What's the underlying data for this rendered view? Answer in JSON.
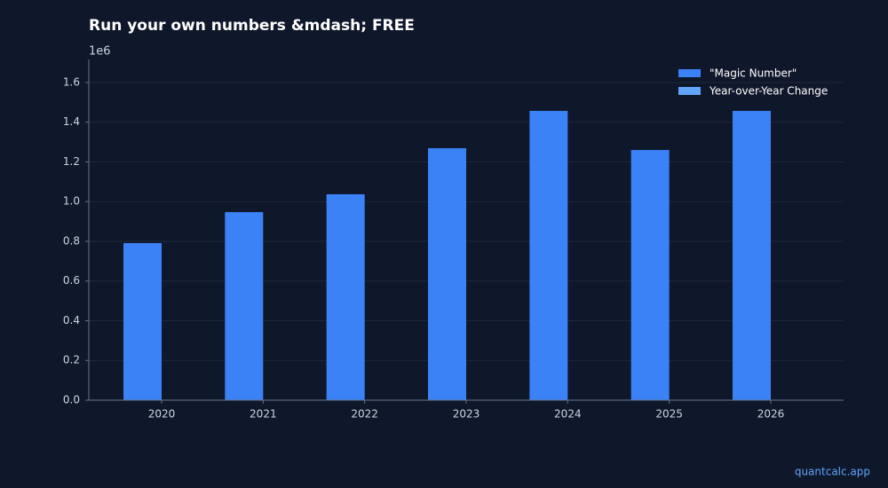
{
  "chart_data": {
    "type": "bar",
    "title": "Run your own numbers &mdash; FREE",
    "y_offset_label": "1e6",
    "categories": [
      "2020",
      "2021",
      "2022",
      "2023",
      "2024",
      "2025",
      "2026"
    ],
    "series": [
      {
        "name": "\"Magic Number\"",
        "color": "#3b82f6",
        "values": [
          791000,
          947000,
          1037000,
          1269000,
          1457000,
          1260000,
          1457000
        ]
      },
      {
        "name": "Year-over-Year Change",
        "color": "#60a5fa",
        "values": [
          0,
          0,
          0,
          0,
          0,
          0,
          0
        ]
      }
    ],
    "ylim": [
      0,
      1716000
    ],
    "yticks": [
      {
        "value": 0,
        "label": "0.0"
      },
      {
        "value": 200000,
        "label": "0.2"
      },
      {
        "value": 400000,
        "label": "0.4"
      },
      {
        "value": 600000,
        "label": "0.6"
      },
      {
        "value": 800000,
        "label": "0.8"
      },
      {
        "value": 1000000,
        "label": "1.0"
      },
      {
        "value": 1200000,
        "label": "1.2"
      },
      {
        "value": 1400000,
        "label": "1.4"
      },
      {
        "value": 1600000,
        "label": "1.6"
      }
    ],
    "grid": true,
    "legend": "upper right",
    "footer": "quantcalc.app"
  }
}
